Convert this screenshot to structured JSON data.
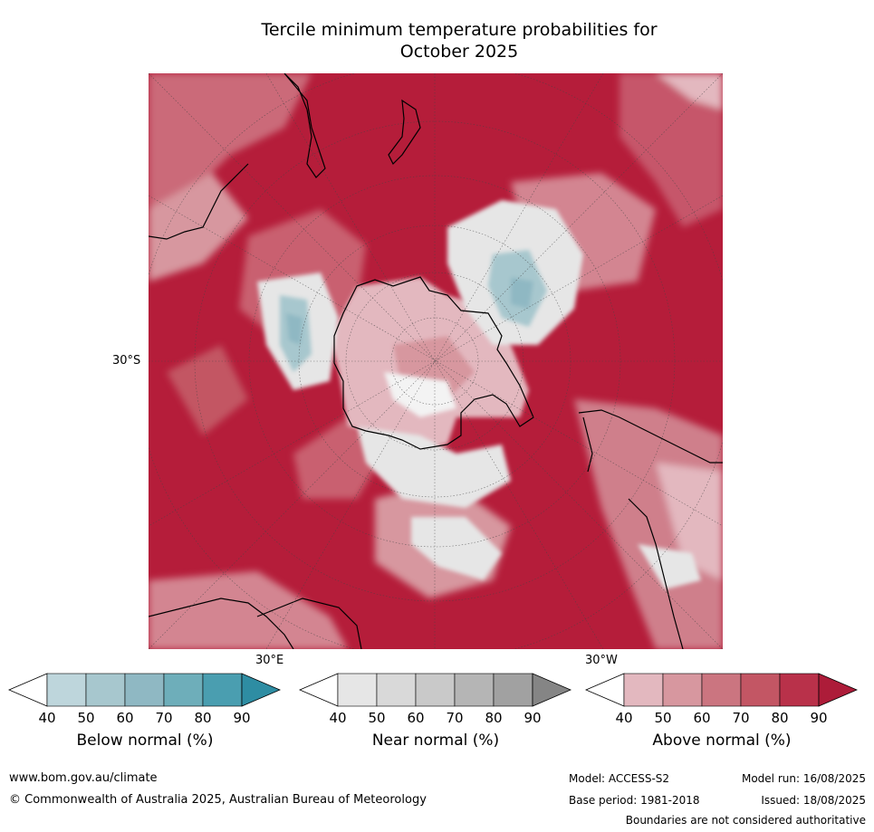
{
  "title_line1": "Tercile minimum temperature probabilities for",
  "title_line2": "October 2025",
  "map": {
    "lat_label": "30°S",
    "lon_label_east": "30°E",
    "lon_label_west": "30°W"
  },
  "colorbars": [
    {
      "label": "Below normal (%)",
      "ticks": [
        "40",
        "50",
        "60",
        "70",
        "80",
        "90"
      ],
      "colors": [
        "#ffffff",
        "#bed6dc",
        "#a7c7ce",
        "#8fb8c3",
        "#6eaeba",
        "#4a9eb0",
        "#2e8da3"
      ]
    },
    {
      "label": "Near normal (%)",
      "ticks": [
        "40",
        "50",
        "60",
        "70",
        "80",
        "90"
      ],
      "colors": [
        "#ffffff",
        "#e6e6e6",
        "#d9d9d9",
        "#c9c9c9",
        "#b5b5b5",
        "#a1a1a1",
        "#858585"
      ]
    },
    {
      "label": "Above normal (%)",
      "ticks": [
        "40",
        "50",
        "60",
        "70",
        "80",
        "90"
      ],
      "colors": [
        "#ffffff",
        "#e3b8bf",
        "#d7979f",
        "#cb7580",
        "#c35664",
        "#b9314a",
        "#ad1c39"
      ]
    }
  ],
  "footer": {
    "url": "www.bom.gov.au/climate",
    "copyright": "© Commonwealth of Australia 2025, Australian Bureau of Meteorology",
    "model": "Model: ACCESS-S2",
    "model_run": "Model run: 16/08/2025",
    "base_period": "Base period: 1981-2018",
    "issued": "Issued: 18/08/2025",
    "disclaimer": "Boundaries are not considered authoritative"
  }
}
